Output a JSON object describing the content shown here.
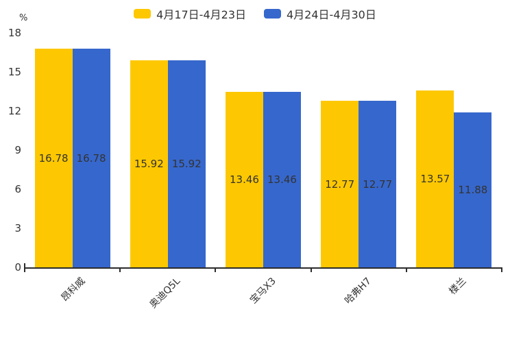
{
  "chart_data": {
    "type": "bar",
    "title": "",
    "unit": "%",
    "categories": [
      "昂科威",
      "奥迪Q5L",
      "宝马X3",
      "哈弗H7",
      "楼兰"
    ],
    "series": [
      {
        "name": "4月17日-4月23日",
        "color": "#FDC801",
        "values": [
          16.78,
          15.92,
          13.46,
          12.77,
          13.57
        ]
      },
      {
        "name": "4月24日-4月30日",
        "color": "#3667CC",
        "values": [
          16.78,
          15.92,
          13.46,
          12.77,
          11.88
        ]
      }
    ],
    "ylim": [
      0,
      18
    ],
    "yticks": [
      0,
      3,
      6,
      9,
      12,
      15,
      18
    ],
    "legend_position": "top",
    "grid": false,
    "value_labels": "inside-middle",
    "xlabel_rotation": 45
  },
  "colors": {
    "axis": "#2b2b2b",
    "text": "#333333",
    "background": "#ffffff"
  }
}
